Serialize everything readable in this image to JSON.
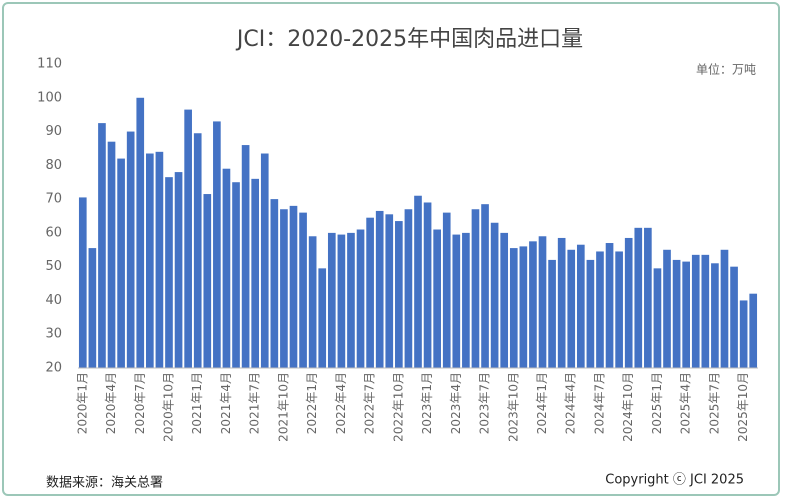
{
  "chart_data": {
    "type": "bar",
    "title": "JCI：2020-2025年中国肉品进口量",
    "unit": "单位：万吨",
    "source": "数据来源：海关总署",
    "copyright": "Copyright ⓒ JCI 2025",
    "categories": [
      "2020年1月",
      null,
      null,
      "2020年4月",
      null,
      null,
      "2020年7月",
      null,
      null,
      "2020年10月",
      null,
      null,
      "2021年1月",
      null,
      null,
      "2021年4月",
      null,
      null,
      "2021年7月",
      null,
      null,
      "2021年10月",
      null,
      null,
      "2022年1月",
      null,
      null,
      "2022年4月",
      null,
      null,
      "2022年7月",
      null,
      null,
      "2022年10月",
      null,
      null,
      "2023年1月",
      null,
      null,
      "2023年4月",
      null,
      null,
      "2023年7月",
      null,
      null,
      "2023年10月",
      null,
      null,
      "2024年1月",
      null,
      null,
      "2024年4月",
      null,
      null,
      "2024年7月",
      null,
      null,
      "2024年10月",
      null,
      null,
      "2025年1月",
      null,
      null,
      "2025年4月",
      null,
      null,
      "2025年7月",
      null,
      null,
      "2025年10月",
      null
    ],
    "values": [
      70.5,
      55.5,
      92.5,
      87,
      82,
      90,
      100,
      83.5,
      84,
      76.5,
      78,
      96.5,
      89.5,
      71.5,
      93,
      79,
      75,
      86,
      76,
      83.5,
      70,
      67,
      68,
      66,
      59,
      49.5,
      60,
      59.5,
      60,
      61,
      64.5,
      66.5,
      65.5,
      63.5,
      67,
      71,
      69,
      61,
      66,
      59.5,
      60,
      67,
      68.5,
      63,
      60,
      55.5,
      56,
      57.5,
      59,
      52,
      58.5,
      55,
      56.5,
      52,
      54.5,
      57,
      54.5,
      58.5,
      61.5,
      61.5,
      49.5,
      55,
      52,
      51.5,
      53.5,
      53.5,
      51,
      55,
      50,
      40,
      42
    ],
    "color": "#4472c4",
    "ylim": [
      20,
      110
    ],
    "yticks": [
      20,
      30,
      40,
      50,
      60,
      70,
      80,
      90,
      100,
      110
    ],
    "grid": false
  }
}
